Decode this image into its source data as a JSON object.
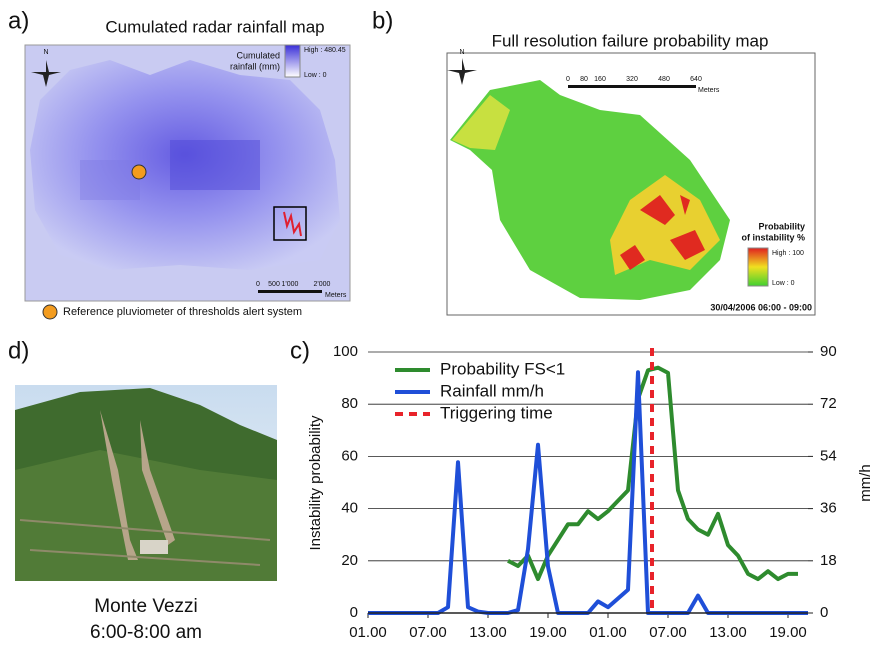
{
  "panels": {
    "a": "a)",
    "b": "b)",
    "c": "c)",
    "d": "d)"
  },
  "map_a": {
    "title": "Cumulated radar rainfall map",
    "north": "N",
    "legend_title_1": "Cumulated",
    "legend_title_2": "rainfall (mm)",
    "high": "High : 480.45",
    "low": "Low : 0",
    "scale": [
      "0",
      "500",
      "1'000",
      "2'000"
    ],
    "scale_unit": "Meters",
    "note": "Reference pluviometer of thresholds alert system"
  },
  "map_b": {
    "title": "Full resolution failure probability map",
    "north": "N",
    "scale": [
      "0",
      "80",
      "160",
      "320",
      "480",
      "640"
    ],
    "scale_unit": "Meters",
    "legend_title_1": "Probability",
    "legend_title_2": "of instability %",
    "high": "High : 100",
    "low": "Low : 0",
    "timestamp": "30/04/2006 06:00 - 09:00"
  },
  "photo": {
    "caption_1": "Monte Vezzi",
    "caption_2": "6:00-8:00 am"
  },
  "chart_data": {
    "type": "line",
    "ylabel": "Instability probability",
    "y2label": "mm/h",
    "x": [
      0,
      1,
      2,
      3,
      4,
      5,
      6,
      7,
      8,
      9,
      10,
      11,
      12,
      13,
      14,
      15,
      16,
      17,
      18,
      19,
      20,
      21,
      22,
      23,
      24,
      25,
      26,
      27,
      28,
      29,
      30,
      31,
      32,
      33,
      34,
      35,
      36,
      37,
      38,
      39,
      40,
      41,
      42,
      43,
      44
    ],
    "xlim": [
      0,
      44
    ],
    "xticks": [
      {
        "value": 0,
        "label": "01.00"
      },
      {
        "value": 6,
        "label": "07.00"
      },
      {
        "value": 12,
        "label": "13.00"
      },
      {
        "value": 18,
        "label": "19.00"
      },
      {
        "value": 24,
        "label": "01.00"
      },
      {
        "value": 30,
        "label": "07.00"
      },
      {
        "value": 36,
        "label": "13.00"
      },
      {
        "value": 42,
        "label": "19.00"
      }
    ],
    "ylim": [
      0,
      100
    ],
    "yticks": [
      0,
      20,
      40,
      60,
      80,
      100
    ],
    "y2lim": [
      0,
      90
    ],
    "y2ticks": [
      0,
      18,
      36,
      54,
      72,
      90
    ],
    "grid": true,
    "series": [
      {
        "name": "Probability FS<1",
        "color": "#2e8b2e",
        "values": [
          null,
          null,
          null,
          null,
          null,
          null,
          null,
          null,
          null,
          null,
          null,
          null,
          null,
          null,
          20,
          18,
          22,
          13,
          22,
          28,
          34,
          34,
          39,
          36,
          39,
          43,
          47,
          82,
          93,
          94,
          92,
          47,
          36,
          32,
          30,
          38,
          26,
          22,
          15,
          13,
          16,
          13,
          15,
          15,
          null
        ]
      },
      {
        "name": "Rainfall mm/h",
        "color": "#1f4fd8",
        "axis": "y2",
        "values": [
          0,
          0,
          0,
          0,
          0,
          0,
          0,
          0,
          2,
          52,
          2,
          0.5,
          0,
          0,
          0,
          1,
          22,
          58,
          16,
          0,
          0,
          0,
          0,
          4,
          2,
          5,
          8,
          83,
          0,
          0,
          0,
          0,
          0,
          6,
          0,
          0,
          0,
          0,
          0,
          0,
          0,
          0,
          0,
          0,
          0
        ]
      }
    ],
    "trigger": {
      "name": "Triggering time",
      "x": 28.4,
      "color": "#e8232a"
    }
  }
}
